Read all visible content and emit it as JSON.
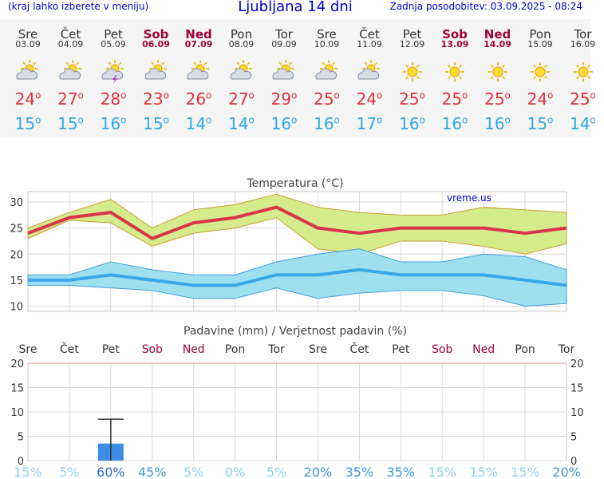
{
  "header": {
    "hint": "(kraj lahko izberete v meniju)",
    "title": "Ljubljana 14 dni",
    "updated": "Zadnja posodobitev: 03.09.2025 - 08:24"
  },
  "days": [
    {
      "name": "Sre",
      "date": "03.09",
      "weekend": false,
      "icon": "sun-cloud-icon",
      "max": "24",
      "min": "15"
    },
    {
      "name": "Čet",
      "date": "04.09",
      "weekend": false,
      "icon": "sun-cloud-icon",
      "max": "27",
      "min": "15"
    },
    {
      "name": "Pet",
      "date": "05.09",
      "weekend": false,
      "icon": "thunderstorm-icon",
      "max": "28",
      "min": "16"
    },
    {
      "name": "Sob",
      "date": "06.09",
      "weekend": true,
      "icon": "sun-cloud-icon",
      "max": "23",
      "min": "15"
    },
    {
      "name": "Ned",
      "date": "07.09",
      "weekend": true,
      "icon": "sun-cloud-icon",
      "max": "26",
      "min": "14"
    },
    {
      "name": "Pon",
      "date": "08.09",
      "weekend": false,
      "icon": "sun-cloud-icon",
      "max": "27",
      "min": "14"
    },
    {
      "name": "Tor",
      "date": "09.09",
      "weekend": false,
      "icon": "sun-cloud-icon",
      "max": "29",
      "min": "16"
    },
    {
      "name": "Sre",
      "date": "10.09",
      "weekend": false,
      "icon": "sun-cloud-icon",
      "max": "25",
      "min": "16"
    },
    {
      "name": "Čet",
      "date": "11.09",
      "weekend": false,
      "icon": "sun-cloud-icon",
      "max": "24",
      "min": "17"
    },
    {
      "name": "Pet",
      "date": "12.09",
      "weekend": false,
      "icon": "sun-icon",
      "max": "25",
      "min": "16"
    },
    {
      "name": "Sob",
      "date": "13.09",
      "weekend": true,
      "icon": "sun-icon",
      "max": "25",
      "min": "16"
    },
    {
      "name": "Ned",
      "date": "14.09",
      "weekend": true,
      "icon": "sun-icon",
      "max": "25",
      "min": "16"
    },
    {
      "name": "Pon",
      "date": "15.09",
      "weekend": false,
      "icon": "sun-icon",
      "max": "24",
      "min": "15"
    },
    {
      "name": "Tor",
      "date": "16.09",
      "weekend": false,
      "icon": "sun-icon",
      "max": "25",
      "min": "14"
    }
  ],
  "colors": {
    "max_line": "#d9344a",
    "max_band": "#d4ec8c",
    "min_line": "#3aa8e8",
    "min_band": "#9fe0f0",
    "precip_bar": "#3c8ce8",
    "prob_text": "#8fd4f4",
    "prob_strong": "#2a6ad0"
  },
  "chart_data": [
    {
      "type": "line",
      "title": "Temperatura (°C)",
      "watermark": "vreme.us",
      "yticks": [
        10,
        15,
        20,
        25,
        30
      ],
      "ylim": [
        9,
        32
      ],
      "series": [
        {
          "values": [
            24,
            27,
            28,
            23,
            26,
            27,
            29,
            25,
            24,
            25,
            25,
            25,
            24,
            25
          ]
        },
        {
          "values": [
            25,
            28,
            30.5,
            25,
            28.5,
            29.5,
            31.5,
            29,
            28,
            27.5,
            27.5,
            29,
            28.5,
            28
          ]
        },
        {
          "values": [
            23,
            26.5,
            26,
            21.5,
            24,
            25,
            27,
            21,
            20,
            22.5,
            22.5,
            21.5,
            20,
            22
          ]
        },
        {
          "values": [
            15,
            15,
            16,
            15,
            14,
            14,
            16,
            16,
            17,
            16,
            16,
            16,
            15,
            14
          ]
        },
        {
          "values": [
            16,
            16,
            18.5,
            17,
            16,
            16,
            18.5,
            20,
            21,
            18.5,
            18.5,
            20,
            19.5,
            17
          ]
        },
        {
          "values": [
            14,
            14,
            13.5,
            13,
            11.5,
            11.5,
            13.5,
            11.5,
            12.5,
            13,
            13,
            12,
            10,
            10.5
          ]
        }
      ]
    },
    {
      "type": "bar",
      "title": "Padavine (mm) / Verjetnost padavin (%)",
      "categories": [
        "Sre",
        "Čet",
        "Pet",
        "Sob",
        "Ned",
        "Pon",
        "Tor",
        "Sre",
        "Čet",
        "Pet",
        "Sob",
        "Ned",
        "Pon",
        "Tor"
      ],
      "weekend": [
        false,
        false,
        false,
        true,
        true,
        false,
        false,
        false,
        false,
        false,
        true,
        true,
        false,
        false
      ],
      "yticks": [
        0,
        5,
        10,
        15,
        20
      ],
      "ylim": [
        0,
        20
      ],
      "precip_mm": [
        0,
        0,
        3.5,
        0,
        0,
        0,
        0,
        0,
        0,
        0,
        0,
        0,
        0,
        0
      ],
      "precip_max_mm": [
        null,
        null,
        8.5,
        null,
        null,
        null,
        null,
        null,
        null,
        null,
        null,
        null,
        null,
        null
      ],
      "probability": [
        "15%",
        "5%",
        "60%",
        "45%",
        "5%",
        "0%",
        "5%",
        "20%",
        "35%",
        "35%",
        "15%",
        "15%",
        "15%",
        "20%"
      ]
    }
  ]
}
